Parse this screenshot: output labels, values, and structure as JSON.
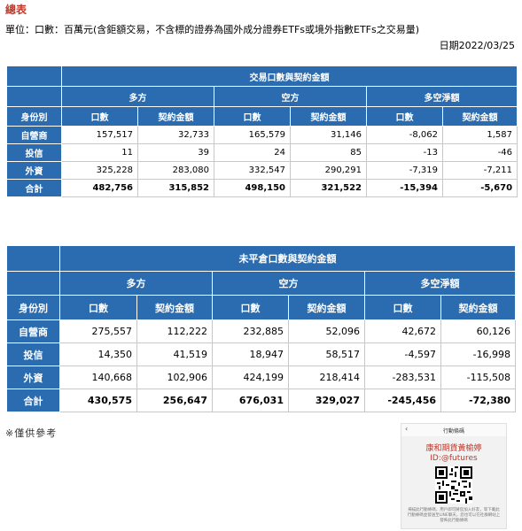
{
  "header": {
    "title": "總表",
    "unit_note": "單位：口數：百萬元(含鉅額交易，不含標的證券為國外成分證券ETFs或境外指數ETFs之交易量)",
    "date": "日期2022/03/25"
  },
  "table1": {
    "group_title": "交易口數與契約金額",
    "sections": [
      "多方",
      "空方",
      "多空淨額"
    ],
    "identity_label": "身份別",
    "columns": [
      "口數",
      "契約金額",
      "口數",
      "契約金額",
      "口數",
      "契約金額"
    ],
    "rows": [
      {
        "label": "自營商",
        "values": [
          "157,517",
          "32,733",
          "165,579",
          "31,146",
          "-8,062",
          "1,587"
        ]
      },
      {
        "label": "投信",
        "values": [
          "11",
          "39",
          "24",
          "85",
          "-13",
          "-46"
        ]
      },
      {
        "label": "外資",
        "values": [
          "325,228",
          "283,080",
          "332,547",
          "290,291",
          "-7,319",
          "-7,211"
        ]
      },
      {
        "label": "合計",
        "values": [
          "482,756",
          "315,852",
          "498,150",
          "321,522",
          "-15,394",
          "-5,670"
        ]
      }
    ]
  },
  "table2": {
    "group_title": "未平倉口數與契約金額",
    "sections": [
      "多方",
      "空方",
      "多空淨額"
    ],
    "identity_label": "身份別",
    "columns": [
      "口數",
      "契約金額",
      "口數",
      "契約金額",
      "口數",
      "契約金額"
    ],
    "rows": [
      {
        "label": "自營商",
        "values": [
          "275,557",
          "112,222",
          "232,885",
          "52,096",
          "42,672",
          "60,126"
        ]
      },
      {
        "label": "投信",
        "values": [
          "14,350",
          "41,519",
          "18,947",
          "58,517",
          "-4,597",
          "-16,998"
        ]
      },
      {
        "label": "外資",
        "values": [
          "140,668",
          "102,906",
          "424,199",
          "218,414",
          "-283,531",
          "-115,508"
        ]
      },
      {
        "label": "合計",
        "values": [
          "430,575",
          "256,647",
          "676,031",
          "329,027",
          "-245,456",
          "-72,380"
        ]
      }
    ]
  },
  "footnote": "※僅供參考",
  "card": {
    "header": "行動條碼",
    "back_icon": "chevron-left-icon",
    "name": "康和期貨黃榆婷",
    "id": "ID:@futures",
    "qr_icon": "qr-code-icon",
    "note": "掃描此行動條碼，用戶即可將您加入好友，等下載此行動條碼並發送至LINE聊天，您也可以在社群網站上發佈此行動條碼"
  },
  "colors": {
    "header_blue": "#2b6cb0",
    "title_red": "#c0392b"
  }
}
